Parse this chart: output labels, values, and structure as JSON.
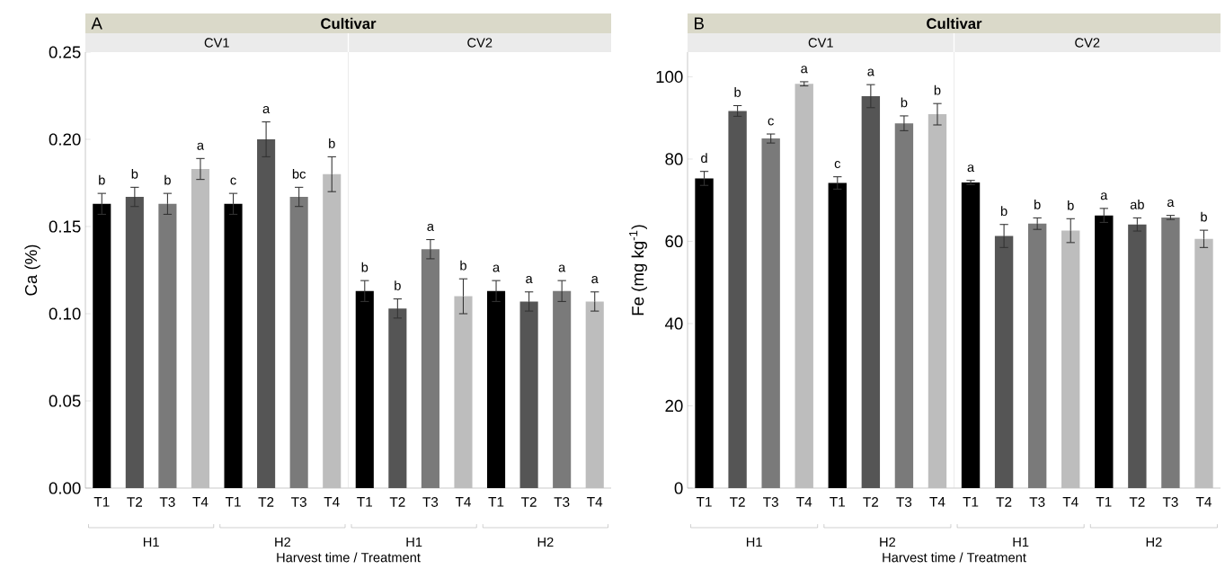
{
  "chart_data": [
    {
      "type": "bar",
      "title": "A",
      "subtitle": "Cultivar",
      "xlabel": "Harvest time / Treatment",
      "ylabel": "Ca (%)",
      "categories": [
        "T1",
        "T2",
        "T3",
        "T4",
        "T1",
        "T2",
        "T3",
        "T4",
        "T1",
        "T2",
        "T3",
        "T4",
        "T1",
        "T2",
        "T3",
        "T4"
      ],
      "values": [
        0.163,
        0.167,
        0.163,
        0.183,
        0.163,
        0.2,
        0.167,
        0.18,
        0.113,
        0.103,
        0.137,
        0.11,
        0.113,
        0.107,
        0.113,
        0.107
      ],
      "errors": [
        0.006,
        0.0055,
        0.006,
        0.006,
        0.006,
        0.01,
        0.0055,
        0.01,
        0.006,
        0.0055,
        0.0055,
        0.01,
        0.006,
        0.0055,
        0.006,
        0.0055
      ],
      "value_labels": [
        "b",
        "b",
        "b",
        "a",
        "c",
        "a",
        "bc",
        "b",
        "b",
        "b",
        "a",
        "b",
        "a",
        "a",
        "a",
        "a"
      ],
      "colors": [
        "#000000",
        "#555555",
        "#7a7a7a",
        "#bdbdbd",
        "#000000",
        "#555555",
        "#7a7a7a",
        "#bdbdbd",
        "#000000",
        "#555555",
        "#7a7a7a",
        "#bdbdbd",
        "#000000",
        "#555555",
        "#7a7a7a",
        "#bdbdbd"
      ],
      "ylim": [
        0,
        0.25
      ],
      "yticks": [
        {
          "value": 0,
          "label": "0.00"
        },
        0.05,
        {
          "value": 0.1,
          "label": "0.10"
        },
        0.15,
        {
          "value": 0.2,
          "label": "0.20"
        },
        0.25
      ],
      "annotations": [
        "CV1",
        "CV2",
        "H1",
        "H2",
        "H1",
        "H2"
      ]
    },
    {
      "type": "bar",
      "title": "B",
      "subtitle": "Cultivar",
      "xlabel": "Harvest time / Treatment",
      "ylabel": "Fe (mg kg$^{-1}$)",
      "categories": [
        "T1",
        "T2",
        "T3",
        "T4",
        "T1",
        "T2",
        "T3",
        "T4",
        "T1",
        "T2",
        "T3",
        "T4",
        "T1",
        "T2",
        "T3",
        "T4"
      ],
      "values": [
        75.3,
        91.7,
        85.0,
        98.3,
        74.2,
        95.3,
        88.7,
        90.9,
        74.3,
        61.3,
        64.3,
        62.6,
        66.3,
        64.1,
        65.8,
        60.6
      ],
      "errors": [
        1.7,
        1.3,
        1.1,
        0.5,
        1.5,
        2.8,
        1.8,
        2.6,
        0.5,
        2.8,
        1.4,
        2.9,
        1.7,
        1.6,
        0.5,
        2.1
      ],
      "value_labels": [
        "d",
        "b",
        "c",
        "a",
        "c",
        "a",
        "b",
        "b",
        "a",
        "b",
        "b",
        "b",
        "a",
        "ab",
        "a",
        "b"
      ],
      "colors": [
        "#000000",
        "#555555",
        "#7a7a7a",
        "#bdbdbd",
        "#000000",
        "#555555",
        "#7a7a7a",
        "#bdbdbd",
        "#000000",
        "#555555",
        "#7a7a7a",
        "#bdbdbd",
        "#000000",
        "#555555",
        "#7a7a7a",
        "#bdbdbd"
      ],
      "ylim": [
        0,
        106
      ],
      "yticks": [
        0,
        20,
        40,
        60,
        80,
        100
      ],
      "annotations": [
        "CV1",
        "CV2",
        "H1",
        "H2",
        "H1",
        "H2"
      ]
    }
  ]
}
